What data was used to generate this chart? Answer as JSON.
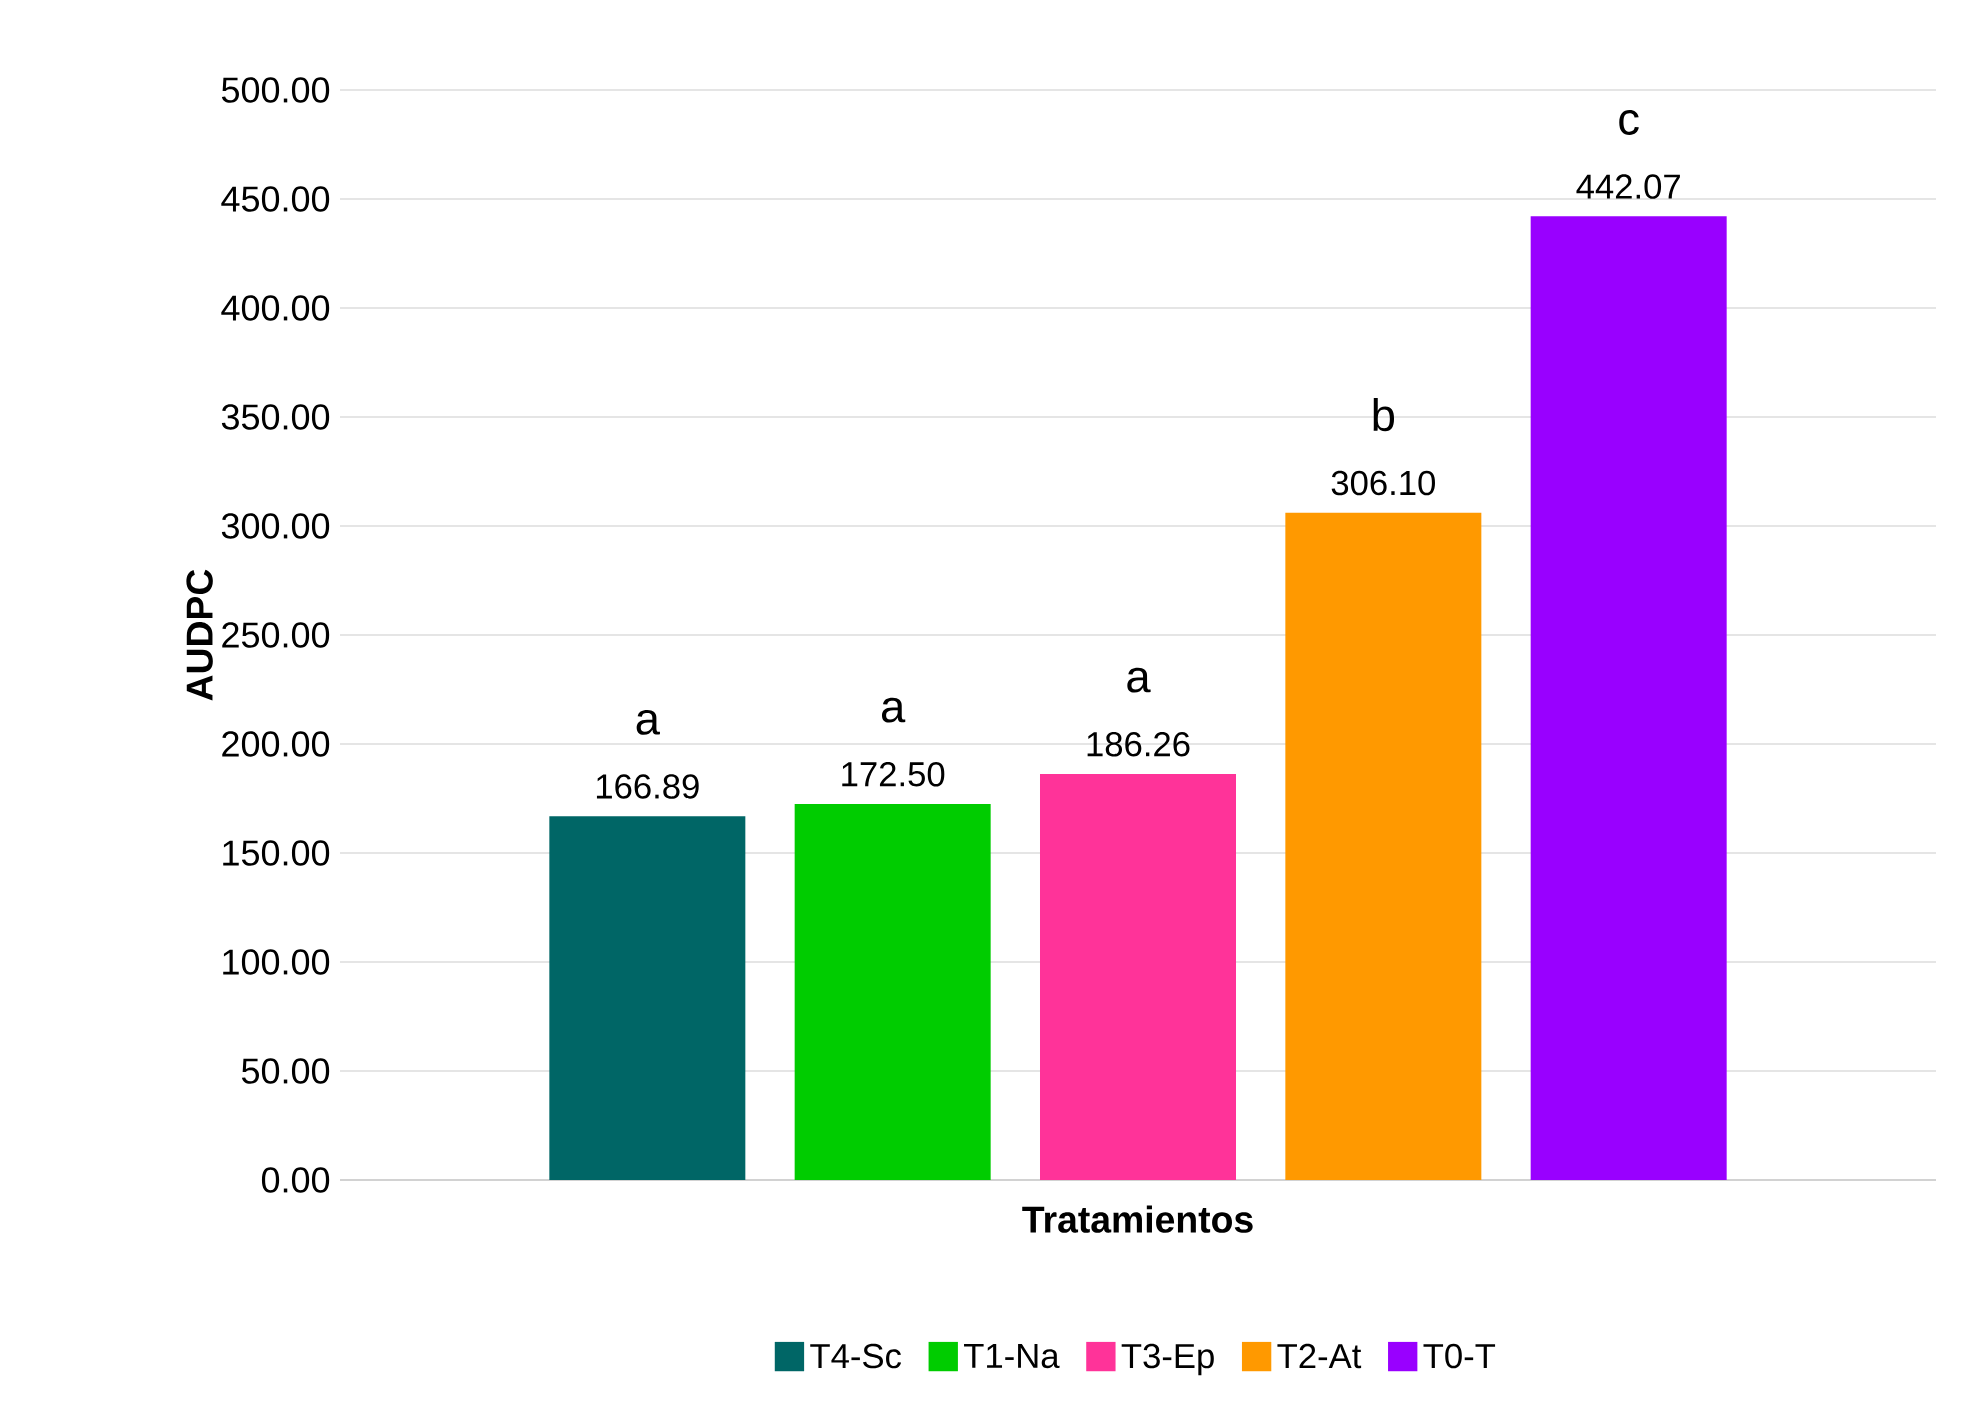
{
  "chart_data": {
    "type": "bar",
    "xlabel": "Tratamientos",
    "ylabel": "AUDPC",
    "categories": [
      null
    ],
    "series": [
      {
        "name": "T4-Sc",
        "color": "#006666",
        "values": [
          166.89
        ],
        "value_labels": [
          "166.89"
        ]
      },
      {
        "name": "T1-Na",
        "color": "#00cc00",
        "values": [
          172.5
        ],
        "value_labels": [
          "172.50"
        ]
      },
      {
        "name": "T3-Ep",
        "color": "#ff3399",
        "values": [
          186.26
        ],
        "value_labels": [
          "186.26"
        ]
      },
      {
        "name": "T2-At",
        "color": "#ff9900",
        "values": [
          306.1
        ],
        "value_labels": [
          "306.10"
        ]
      },
      {
        "name": "T0-T",
        "color": "#9900ff",
        "values": [
          442.07
        ],
        "value_labels": [
          "442.07"
        ]
      }
    ],
    "annotations": [
      "a",
      "a",
      "a",
      "b",
      "c"
    ],
    "ylim": [
      0,
      500
    ],
    "yticks": [
      {
        "value": 0,
        "label": "0.00"
      },
      {
        "value": 50,
        "label": "50.00"
      },
      {
        "value": 100,
        "label": "100.00"
      },
      {
        "value": 150,
        "label": "150.00"
      },
      {
        "value": 200,
        "label": "200.00"
      },
      {
        "value": 250,
        "label": "250.00"
      },
      {
        "value": 300,
        "label": "300.00"
      },
      {
        "value": 350,
        "label": "350.00"
      },
      {
        "value": 400,
        "label": "400.00"
      },
      {
        "value": 450,
        "label": "450.00"
      },
      {
        "value": 500,
        "label": "500.00"
      }
    ],
    "grid": "y",
    "legend": "bottom",
    "tick_labels": "y"
  }
}
